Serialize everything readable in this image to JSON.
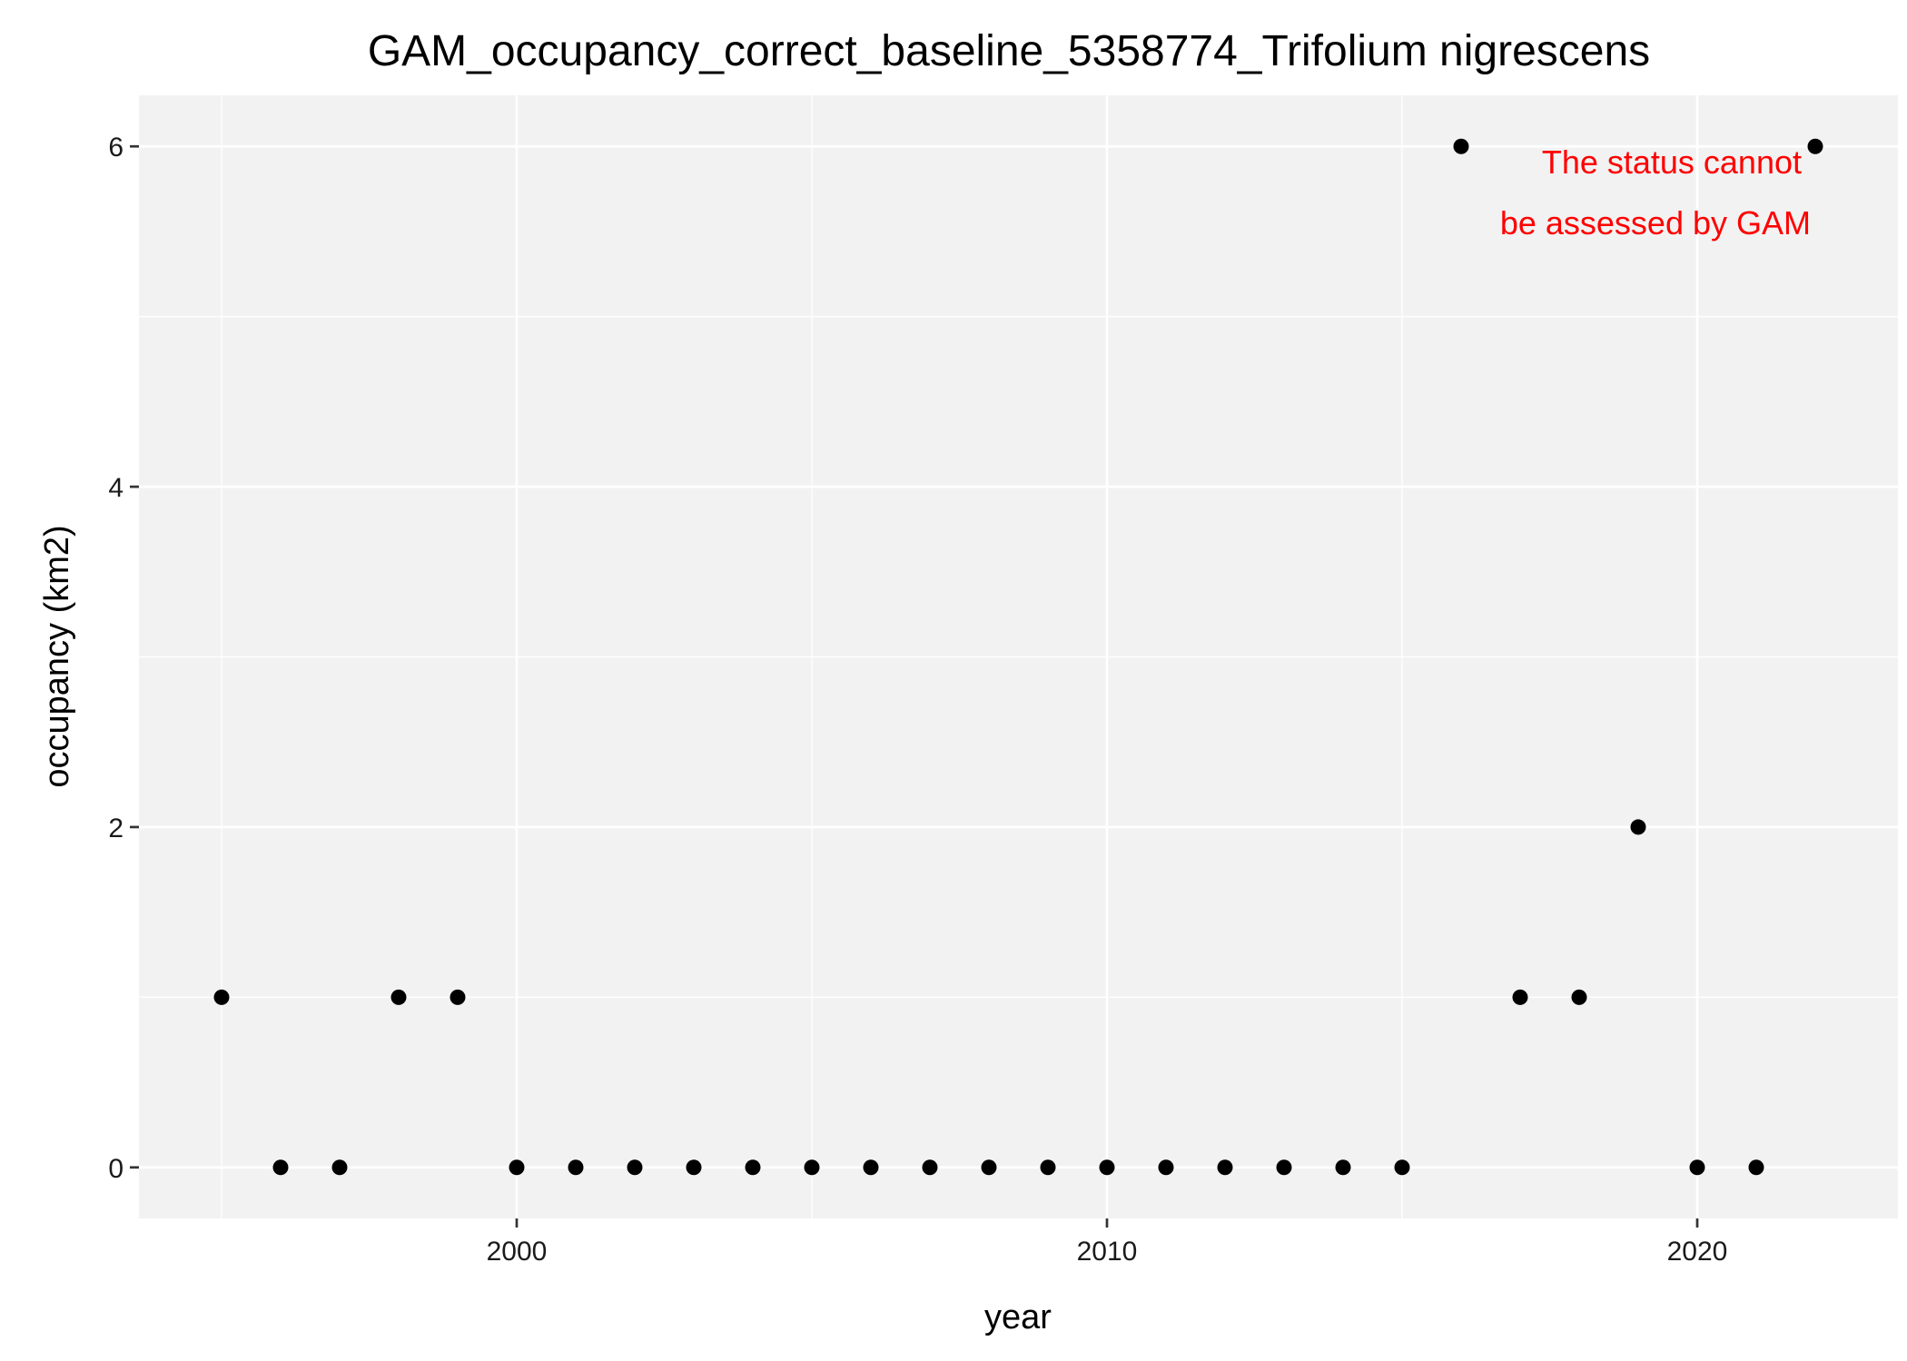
{
  "chart_data": {
    "type": "scatter",
    "title": "GAM_occupancy_correct_baseline_5358774_Trifolium nigrescens",
    "xlabel": "year",
    "ylabel": "occupancy (km2)",
    "xlim": [
      1993.6,
      2023.4
    ],
    "ylim": [
      -0.3,
      6.3
    ],
    "x_ticks": [
      2000,
      2010,
      2020
    ],
    "x_tick_labels": [
      "2000",
      "2010",
      "2020"
    ],
    "x_minor_ticks": [
      1995,
      2005,
      2015
    ],
    "y_ticks": [
      0,
      2,
      4,
      6
    ],
    "y_tick_labels": [
      "0",
      "2",
      "4",
      "6"
    ],
    "y_minor_ticks": [
      1,
      3,
      5
    ],
    "grid": true,
    "legend": "none",
    "points": [
      {
        "x": 1995,
        "y": 1
      },
      {
        "x": 1996,
        "y": 0
      },
      {
        "x": 1997,
        "y": 0
      },
      {
        "x": 1998,
        "y": 1
      },
      {
        "x": 1999,
        "y": 1
      },
      {
        "x": 2000,
        "y": 0
      },
      {
        "x": 2001,
        "y": 0
      },
      {
        "x": 2002,
        "y": 0
      },
      {
        "x": 2003,
        "y": 0
      },
      {
        "x": 2004,
        "y": 0
      },
      {
        "x": 2005,
        "y": 0
      },
      {
        "x": 2006,
        "y": 0
      },
      {
        "x": 2007,
        "y": 0
      },
      {
        "x": 2008,
        "y": 0
      },
      {
        "x": 2009,
        "y": 0
      },
      {
        "x": 2010,
        "y": 0
      },
      {
        "x": 2011,
        "y": 0
      },
      {
        "x": 2012,
        "y": 0
      },
      {
        "x": 2013,
        "y": 0
      },
      {
        "x": 2014,
        "y": 0
      },
      {
        "x": 2015,
        "y": 0
      },
      {
        "x": 2016,
        "y": 6
      },
      {
        "x": 2017,
        "y": 1
      },
      {
        "x": 2018,
        "y": 1
      },
      {
        "x": 2019,
        "y": 2
      },
      {
        "x": 2020,
        "y": 0
      },
      {
        "x": 2021,
        "y": 0
      },
      {
        "x": 2022,
        "y": 6
      }
    ],
    "annotation": {
      "lines": [
        "The status cannot",
        "be assessed by GAM"
      ],
      "color": "#ff0000"
    },
    "colors": {
      "panel_background": "#f2f2f2",
      "grid": "#ffffff",
      "point": "#000000"
    }
  }
}
